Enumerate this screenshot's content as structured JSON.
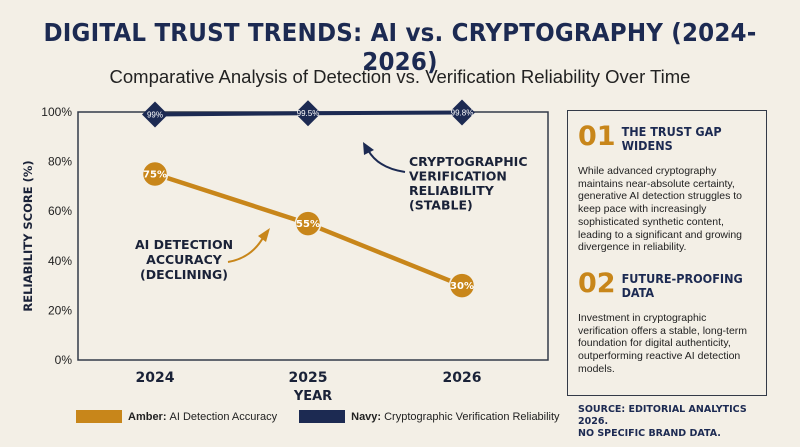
{
  "title": "DIGITAL TRUST TRENDS: AI vs. CRYPTOGRAPHY (2024-2026)",
  "subtitle": "Comparative Analysis of Detection vs. Verification Reliability Over Time",
  "colors": {
    "amber": "#c8861a",
    "navy": "#1c2a52"
  },
  "chart_data": {
    "type": "line",
    "x": [
      "2024",
      "2025",
      "2026"
    ],
    "xlabel": "YEAR",
    "ylabel": "RELIABILITY SCORE (%)",
    "ylim": [
      0,
      100
    ],
    "yticks": [
      "0%",
      "20%",
      "40%",
      "60%",
      "80%",
      "100%"
    ],
    "grid": false,
    "legend_position": "bottom",
    "series": [
      {
        "key": "ai",
        "values": [
          75,
          55,
          30
        ],
        "labels": [
          "75%",
          "55%",
          "30%"
        ],
        "marker": "circle",
        "color": "#c8861a",
        "annotation": [
          "AI DETECTION",
          "ACCURACY",
          "(DECLINING)"
        ]
      },
      {
        "key": "crypto",
        "values": [
          99,
          99.5,
          99.8
        ],
        "labels": [
          "99%",
          "99.5%",
          "99.8%"
        ],
        "marker": "diamond",
        "color": "#1c2a52",
        "annotation": [
          "CRYPTOGRAPHIC",
          "VERIFICATION",
          "RELIABILITY",
          "(STABLE)"
        ]
      }
    ]
  },
  "legend": [
    {
      "bold": "Amber:",
      "text": "AI Detection Accuracy",
      "color": "#c8861a"
    },
    {
      "bold": "Navy:",
      "text": "Cryptographic Verification Reliability",
      "color": "#1c2a52"
    }
  ],
  "sidebar": {
    "points": [
      {
        "number": "01",
        "title": "THE TRUST GAP WIDENS",
        "body": "While advanced cryptography maintains near-absolute certainty, generative AI detection struggles to keep pace with increasingly sophisticated synthetic content, leading to a significant and growing divergence in reliability."
      },
      {
        "number": "02",
        "title": "FUTURE-PROOFING DATA",
        "body": "Investment in cryptographic verification offers a stable, long-term foundation for digital authenticity, outperforming reactive AI detection models."
      }
    ]
  },
  "source": [
    "SOURCE: EDITORIAL ANALYTICS 2026.",
    "NO SPECIFIC BRAND DATA."
  ]
}
